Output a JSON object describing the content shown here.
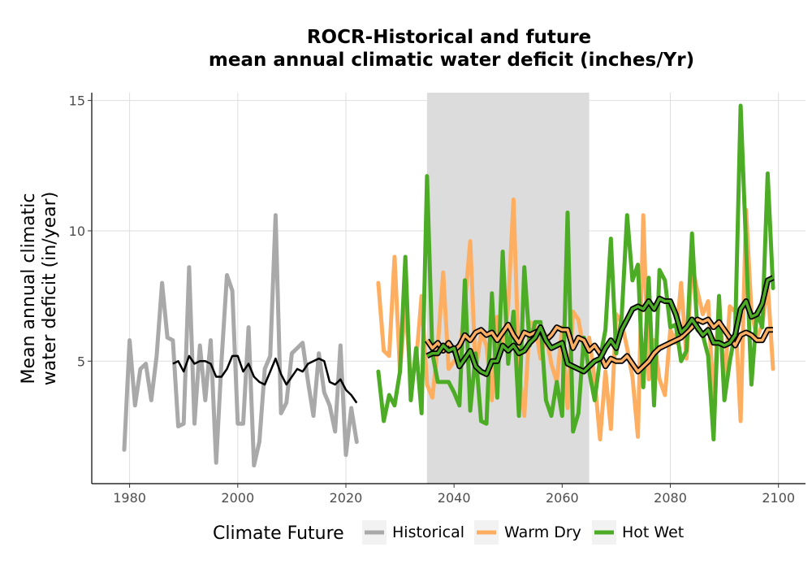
{
  "chart_data": {
    "type": "line",
    "title_line1": "ROCR-Historical and future",
    "title_line2": "mean annual climatic water deficit (inches/Yr)",
    "ylabel_line1": "Mean annual climatic",
    "ylabel_line2": "water deficit (in/year)",
    "xlabel": "",
    "xlim": [
      1973,
      2105
    ],
    "ylim": [
      0.3,
      15.3
    ],
    "x_ticks": [
      1980,
      2000,
      2020,
      2040,
      2060,
      2080,
      2100
    ],
    "x_tick_labels": [
      "1980",
      "2000",
      "2020",
      "2040",
      "2060",
      "2080",
      "2100"
    ],
    "y_ticks": [
      5,
      10,
      15
    ],
    "y_tick_labels": [
      "5",
      "10",
      "15"
    ],
    "grid": true,
    "shaded_period": [
      2035,
      2065
    ],
    "shaded_color": "#dcdcdc",
    "legend": {
      "title": "Climate Future",
      "position": "bottom"
    },
    "series": [
      {
        "name": "Historical",
        "color": "#a9a9a9",
        "x": [
          1979,
          1980,
          1981,
          1982,
          1983,
          1984,
          1985,
          1986,
          1987,
          1988,
          1989,
          1990,
          1991,
          1992,
          1993,
          1994,
          1995,
          1996,
          1997,
          1998,
          1999,
          2000,
          2001,
          2002,
          2003,
          2004,
          2005,
          2006,
          2007,
          2008,
          2009,
          2010,
          2011,
          2012,
          2013,
          2014,
          2015,
          2016,
          2017,
          2018,
          2019,
          2020,
          2021,
          2022
        ],
        "y": [
          1.6,
          5.8,
          3.3,
          4.7,
          4.9,
          3.5,
          5.2,
          8.0,
          5.9,
          5.8,
          2.5,
          2.6,
          8.6,
          2.6,
          5.6,
          3.5,
          5.8,
          1.1,
          5.0,
          8.3,
          7.7,
          2.6,
          2.6,
          6.3,
          1.0,
          1.9,
          4.7,
          5.2,
          10.6,
          3.0,
          3.4,
          5.3,
          5.5,
          5.7,
          4.2,
          2.9,
          5.3,
          3.8,
          3.3,
          2.3,
          5.6,
          1.4,
          3.2,
          1.9
        ]
      },
      {
        "name": "Historical rolling mean",
        "color": "#000000",
        "x": [
          1988,
          1989,
          1990,
          1991,
          1992,
          1993,
          1994,
          1995,
          1996,
          1997,
          1998,
          1999,
          2000,
          2001,
          2002,
          2003,
          2004,
          2005,
          2006,
          2007,
          2008,
          2009,
          2010,
          2011,
          2012,
          2013,
          2014,
          2015,
          2016,
          2017,
          2018,
          2019,
          2020,
          2021,
          2022
        ],
        "y": [
          4.9,
          5.0,
          4.6,
          5.2,
          4.9,
          5.0,
          5.0,
          4.9,
          4.4,
          4.4,
          4.7,
          5.2,
          5.2,
          4.6,
          4.9,
          4.4,
          4.2,
          4.1,
          4.6,
          5.1,
          4.5,
          4.1,
          4.4,
          4.7,
          4.6,
          4.9,
          5.0,
          5.1,
          5.0,
          4.2,
          4.1,
          4.3,
          3.9,
          3.7,
          3.4
        ]
      },
      {
        "name": "Warm Dry",
        "color": "#fdae61",
        "x": [
          2026,
          2027,
          2028,
          2029,
          2030,
          2031,
          2032,
          2033,
          2034,
          2035,
          2036,
          2037,
          2038,
          2039,
          2040,
          2041,
          2042,
          2043,
          2044,
          2045,
          2046,
          2047,
          2048,
          2049,
          2050,
          2051,
          2052,
          2053,
          2054,
          2055,
          2056,
          2057,
          2058,
          2059,
          2060,
          2061,
          2062,
          2063,
          2064,
          2065,
          2066,
          2067,
          2068,
          2069,
          2070,
          2071,
          2072,
          2073,
          2074,
          2075,
          2076,
          2077,
          2078,
          2079,
          2080,
          2081,
          2082,
          2083,
          2084,
          2085,
          2086,
          2087,
          2088,
          2089,
          2090,
          2091,
          2092,
          2093,
          2094,
          2095,
          2096,
          2097,
          2098,
          2099
        ],
        "y": [
          8.0,
          5.4,
          5.2,
          9.0,
          4.6,
          7.2,
          4.2,
          5.0,
          7.5,
          4.1,
          3.6,
          5.6,
          8.4,
          4.7,
          5.0,
          5.1,
          7.2,
          9.6,
          4.6,
          6.1,
          5.6,
          3.5,
          6.7,
          5.5,
          7.1,
          11.2,
          4.7,
          2.9,
          6.5,
          6.4,
          5.1,
          6.0,
          4.9,
          4.2,
          6.3,
          3.2,
          6.9,
          6.6,
          5.4,
          5.9,
          4.3,
          2.0,
          4.6,
          2.4,
          6.8,
          6.5,
          5.5,
          4.4,
          2.1,
          10.6,
          4.3,
          5.8,
          4.3,
          3.7,
          6.2,
          5.7,
          8.0,
          5.1,
          8.7,
          7.7,
          6.8,
          7.3,
          3.4,
          7.4,
          4.1,
          7.1,
          6.9,
          2.7,
          10.8,
          6.9,
          5.9,
          6.4,
          8.0,
          4.7
        ]
      },
      {
        "name": "Warm Dry rolling mean",
        "color": "#fdae61",
        "x": [
          2035,
          2036,
          2037,
          2038,
          2039,
          2040,
          2041,
          2042,
          2043,
          2044,
          2045,
          2046,
          2047,
          2048,
          2049,
          2050,
          2051,
          2052,
          2053,
          2054,
          2055,
          2056,
          2057,
          2058,
          2059,
          2060,
          2061,
          2062,
          2063,
          2064,
          2065,
          2066,
          2067,
          2068,
          2069,
          2070,
          2071,
          2072,
          2073,
          2074,
          2075,
          2076,
          2077,
          2078,
          2079,
          2080,
          2081,
          2082,
          2083,
          2084,
          2085,
          2086,
          2087,
          2088,
          2089,
          2090,
          2091,
          2092,
          2093,
          2094,
          2095,
          2096,
          2097,
          2098,
          2099
        ],
        "y": [
          5.8,
          5.5,
          5.7,
          5.4,
          5.7,
          5.4,
          5.6,
          6.0,
          5.8,
          6.1,
          6.2,
          6.0,
          6.1,
          5.8,
          6.1,
          6.4,
          6.0,
          5.7,
          6.1,
          6.0,
          6.1,
          6.2,
          5.8,
          6.0,
          6.3,
          6.2,
          6.2,
          5.5,
          5.9,
          5.8,
          5.4,
          5.6,
          5.3,
          4.8,
          5.1,
          5.0,
          5.0,
          5.2,
          4.9,
          4.6,
          4.8,
          5.0,
          5.3,
          5.5,
          5.6,
          5.7,
          5.8,
          5.9,
          6.1,
          6.3,
          6.6,
          6.5,
          6.6,
          6.3,
          6.5,
          6.2,
          5.9,
          5.6,
          6.0,
          6.1,
          6.0,
          5.8,
          5.8,
          6.2,
          6.2
        ]
      },
      {
        "name": "Hot Wet",
        "color": "#4dac26",
        "x": [
          2026,
          2027,
          2028,
          2029,
          2030,
          2031,
          2032,
          2033,
          2034,
          2035,
          2036,
          2037,
          2038,
          2039,
          2040,
          2041,
          2042,
          2043,
          2044,
          2045,
          2046,
          2047,
          2048,
          2049,
          2050,
          2051,
          2052,
          2053,
          2054,
          2055,
          2056,
          2057,
          2058,
          2059,
          2060,
          2061,
          2062,
          2063,
          2064,
          2065,
          2066,
          2067,
          2068,
          2069,
          2070,
          2071,
          2072,
          2073,
          2074,
          2075,
          2076,
          2077,
          2078,
          2079,
          2080,
          2081,
          2082,
          2083,
          2084,
          2085,
          2086,
          2087,
          2088,
          2089,
          2090,
          2091,
          2092,
          2093,
          2094,
          2095,
          2096,
          2097,
          2098,
          2099
        ],
        "y": [
          4.6,
          2.7,
          3.7,
          3.3,
          4.6,
          9.0,
          3.5,
          5.5,
          3.0,
          12.1,
          5.3,
          4.2,
          4.2,
          4.2,
          3.8,
          3.3,
          8.1,
          3.1,
          5.3,
          2.7,
          2.6,
          7.6,
          3.6,
          9.2,
          4.9,
          6.9,
          2.9,
          8.6,
          5.6,
          6.5,
          6.5,
          3.5,
          2.9,
          4.2,
          2.9,
          10.7,
          2.3,
          3.0,
          5.9,
          4.6,
          3.5,
          5.1,
          6.2,
          9.7,
          5.3,
          6.7,
          10.6,
          8.1,
          8.7,
          4.0,
          8.2,
          3.3,
          8.5,
          8.1,
          6.3,
          6.4,
          5.0,
          5.4,
          9.9,
          6.2,
          6.0,
          5.2,
          2.0,
          7.5,
          3.5,
          5.0,
          6.1,
          14.8,
          9.4,
          4.1,
          6.9,
          6.3,
          12.2,
          7.8
        ]
      },
      {
        "name": "Hot Wet rolling mean",
        "color": "#4dac26",
        "x": [
          2035,
          2036,
          2037,
          2038,
          2039,
          2040,
          2041,
          2042,
          2043,
          2044,
          2045,
          2046,
          2047,
          2048,
          2049,
          2050,
          2051,
          2052,
          2053,
          2054,
          2055,
          2056,
          2057,
          2058,
          2059,
          2060,
          2061,
          2062,
          2063,
          2064,
          2065,
          2066,
          2067,
          2068,
          2069,
          2070,
          2071,
          2072,
          2073,
          2074,
          2075,
          2076,
          2077,
          2078,
          2079,
          2080,
          2081,
          2082,
          2083,
          2084,
          2085,
          2086,
          2087,
          2088,
          2089,
          2090,
          2091,
          2092,
          2093,
          2094,
          2095,
          2096,
          2097,
          2098,
          2099
        ],
        "y": [
          5.2,
          5.3,
          5.3,
          5.6,
          5.4,
          5.5,
          4.8,
          5.1,
          5.4,
          4.8,
          4.6,
          4.5,
          5.0,
          5.0,
          5.6,
          5.4,
          5.6,
          5.3,
          5.4,
          5.7,
          5.9,
          6.3,
          5.8,
          5.5,
          5.6,
          5.7,
          4.9,
          4.8,
          4.7,
          4.6,
          4.8,
          5.0,
          5.1,
          5.5,
          5.8,
          5.5,
          6.2,
          6.6,
          7.0,
          7.1,
          7.0,
          7.3,
          7.0,
          7.4,
          7.3,
          7.3,
          6.8,
          6.1,
          6.3,
          6.6,
          6.3,
          6.0,
          6.2,
          5.7,
          5.7,
          5.6,
          5.7,
          6.0,
          7.0,
          7.3,
          6.7,
          6.8,
          7.2,
          8.1,
          8.2
        ]
      }
    ],
    "legend_entries": [
      {
        "label": "Historical",
        "color": "#a9a9a9"
      },
      {
        "label": "Warm Dry",
        "color": "#fdae61"
      },
      {
        "label": "Hot Wet",
        "color": "#4dac26"
      }
    ]
  }
}
